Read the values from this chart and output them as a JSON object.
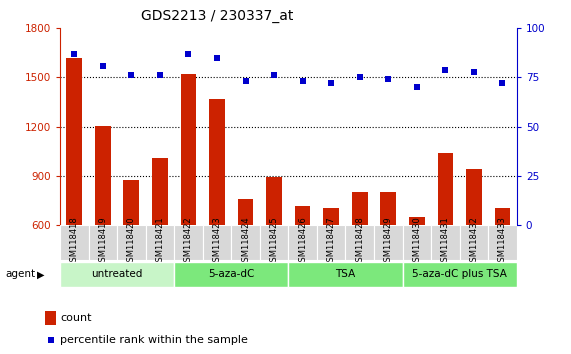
{
  "title": "GDS2213 / 230337_at",
  "samples": [
    "GSM118418",
    "GSM118419",
    "GSM118420",
    "GSM118421",
    "GSM118422",
    "GSM118423",
    "GSM118424",
    "GSM118425",
    "GSM118426",
    "GSM118427",
    "GSM118428",
    "GSM118429",
    "GSM118430",
    "GSM118431",
    "GSM118432",
    "GSM118433"
  ],
  "counts": [
    1620,
    1205,
    875,
    1010,
    1520,
    1370,
    760,
    890,
    715,
    700,
    800,
    800,
    645,
    1040,
    940,
    700
  ],
  "percentiles": [
    87,
    81,
    76,
    76,
    87,
    85,
    73,
    76,
    73,
    72,
    75,
    74,
    70,
    79,
    78,
    72
  ],
  "groups": [
    {
      "label": "untreated",
      "start": 0,
      "end": 3,
      "color": "#c8f5c8"
    },
    {
      "label": "5-aza-dC",
      "start": 4,
      "end": 7,
      "color": "#7ce87c"
    },
    {
      "label": "TSA",
      "start": 8,
      "end": 11,
      "color": "#7ce87c"
    },
    {
      "label": "5-aza-dC plus TSA",
      "start": 12,
      "end": 15,
      "color": "#7ce87c"
    }
  ],
  "ylim_left": [
    600,
    1800
  ],
  "ylim_right": [
    0,
    100
  ],
  "yticks_left": [
    600,
    900,
    1200,
    1500,
    1800
  ],
  "yticks_right": [
    0,
    25,
    50,
    75,
    100
  ],
  "bar_color": "#cc2200",
  "dot_color": "#0000cc",
  "bg_color": "#ffffff",
  "bar_width": 0.55,
  "agent_label": "agent",
  "legend_count": "count",
  "legend_pct": "percentile rank within the sample",
  "gridlines": [
    900,
    1200,
    1500
  ]
}
